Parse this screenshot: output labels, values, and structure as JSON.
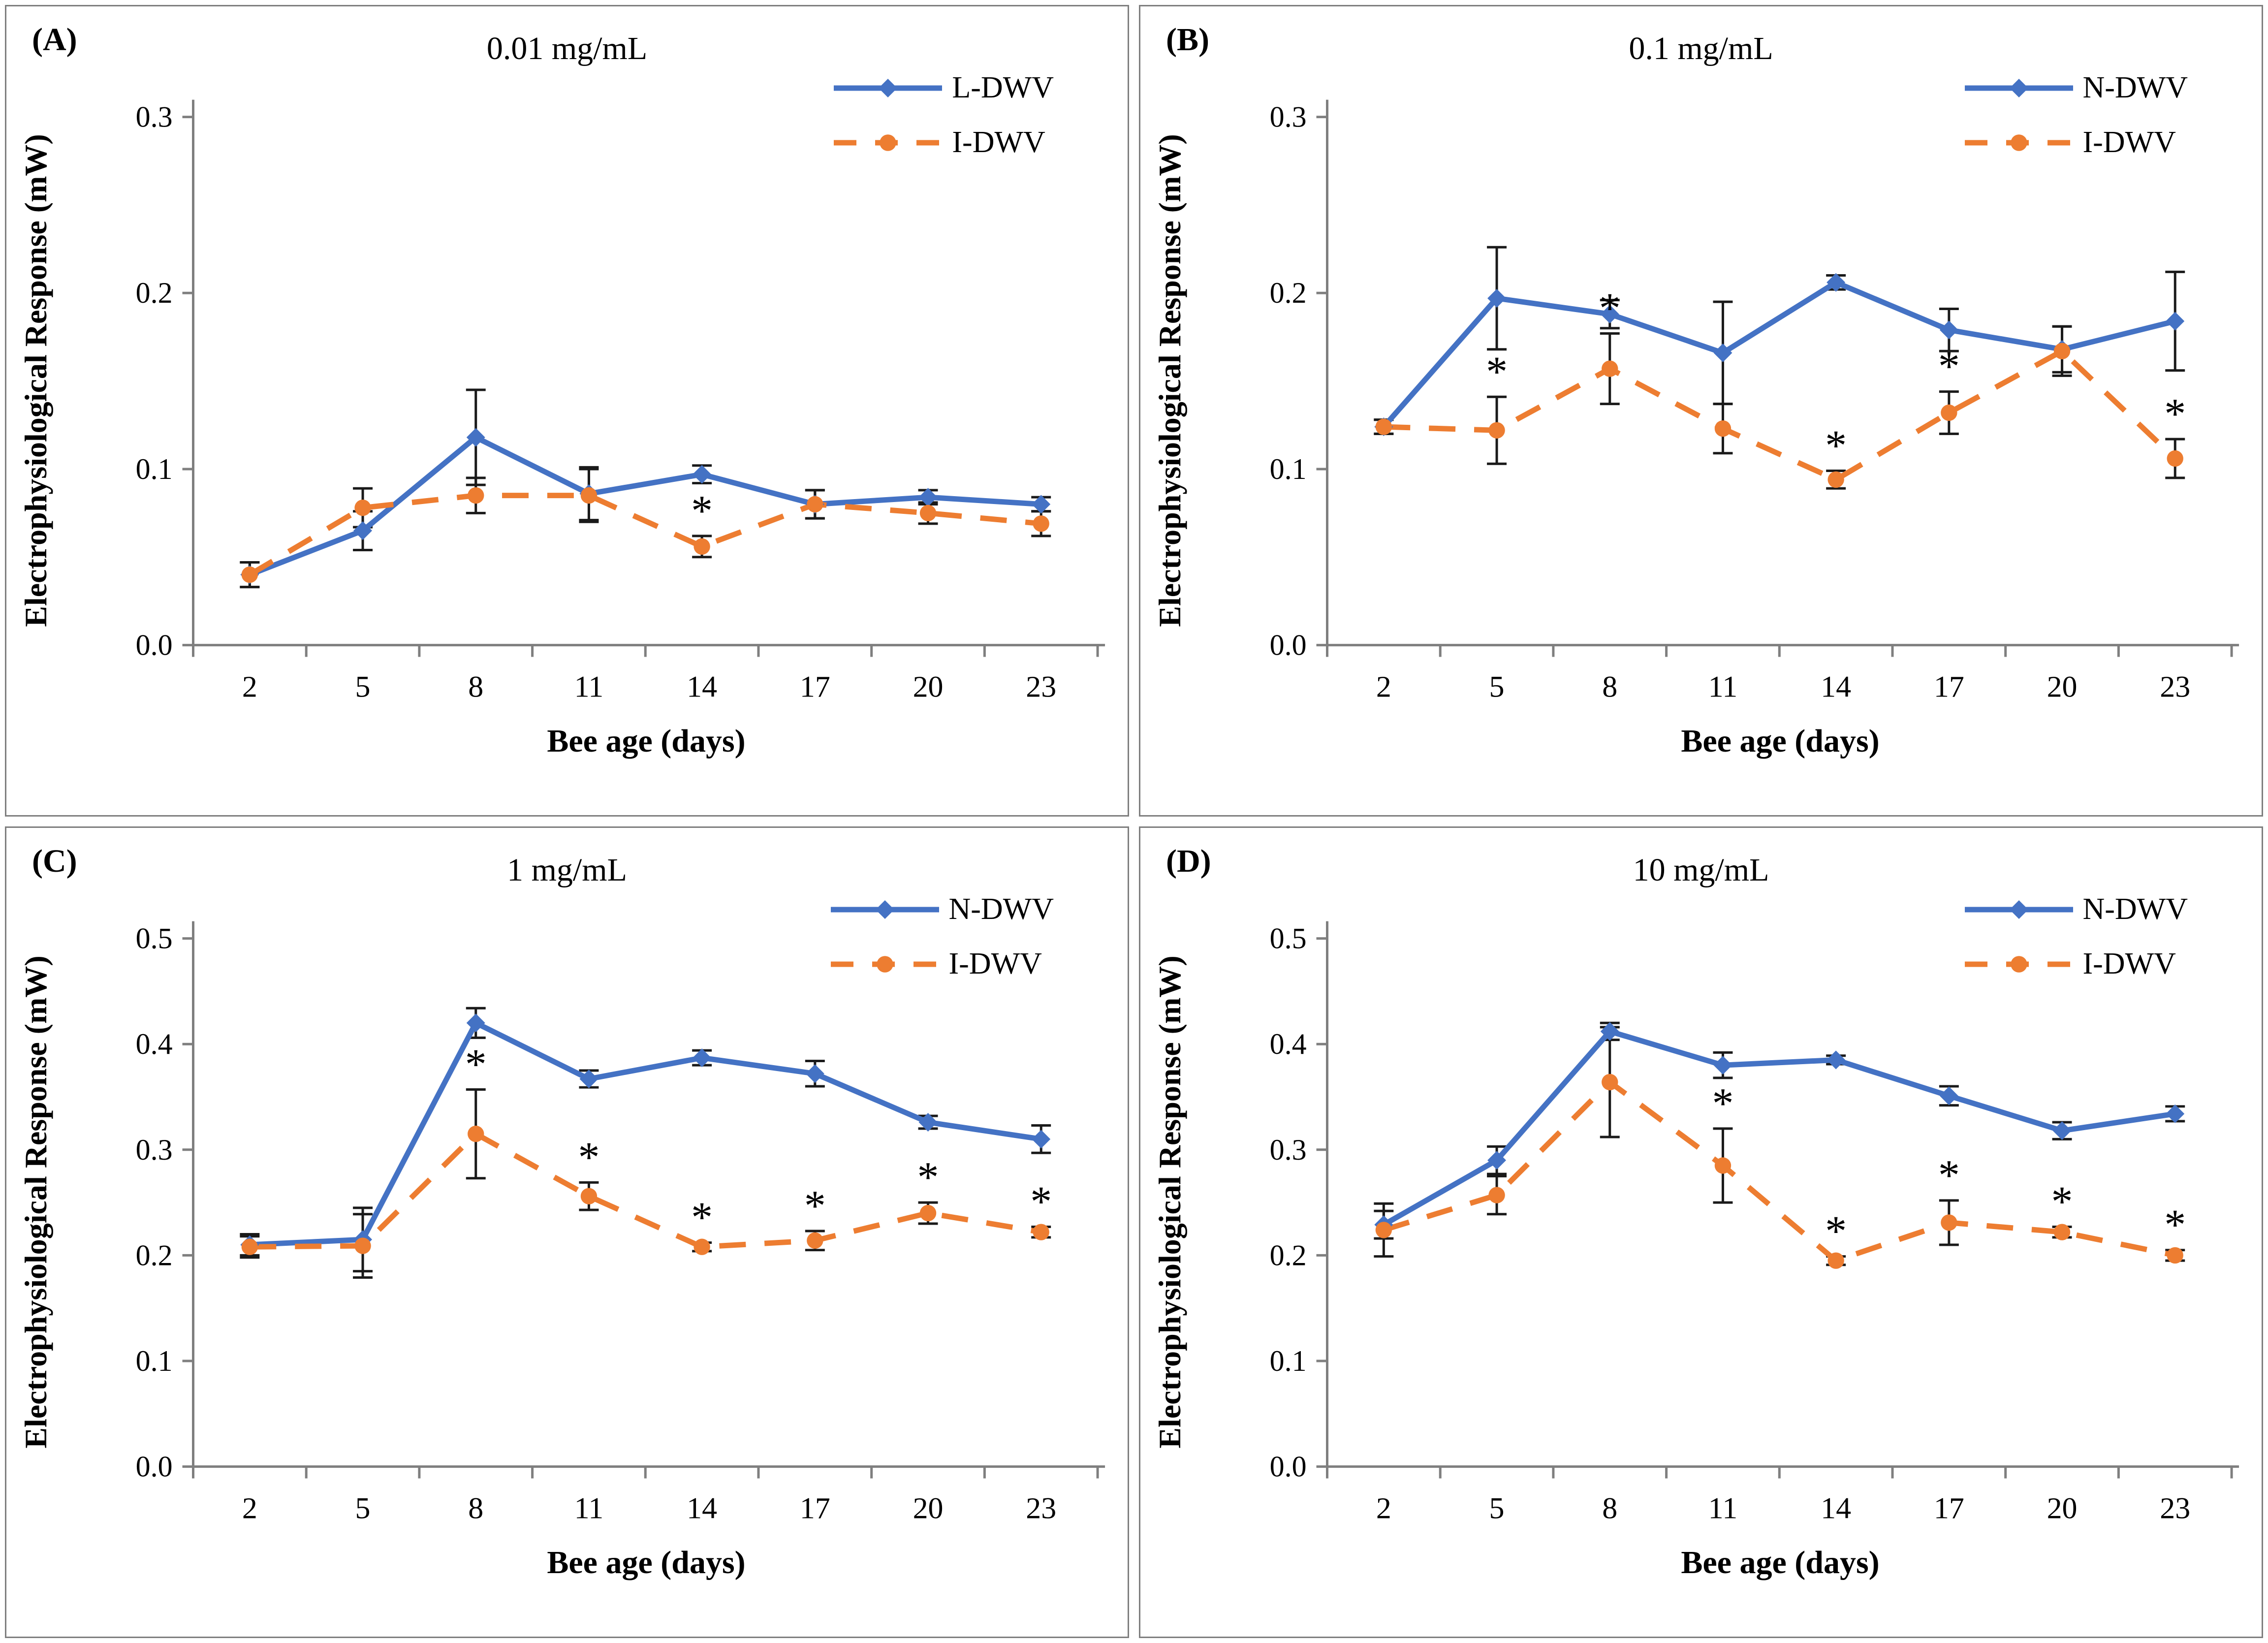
{
  "figure": {
    "background": "#ffffff",
    "panel_border_color": "#7f7f7f",
    "axis_color": "#7f7f7f",
    "error_bar_color": "#1a1a1a",
    "significance_marker": "*"
  },
  "chart_data": [
    {
      "type": "line",
      "panel_label": "(A)",
      "title": "0.01 mg/mL",
      "xlabel": "Bee age (days)",
      "ylabel": "Electrophysiological Response (mW)",
      "categories": [
        2,
        5,
        8,
        11,
        14,
        17,
        20,
        23
      ],
      "ylim": [
        0.0,
        0.3
      ],
      "yticks": [
        "0.0",
        "0.1",
        "0.2",
        "0.3"
      ],
      "legend_position": "top-right",
      "grid": "off",
      "series": [
        {
          "name": "L-DWV",
          "color": "#4472C4",
          "line_style": "solid",
          "marker": "diamond",
          "values": [
            0.04,
            0.065,
            0.118,
            0.086,
            0.097,
            0.08,
            0.084,
            0.08
          ],
          "errors": [
            0.007,
            0.011,
            0.027,
            0.015,
            0.005,
            0.008,
            0.004,
            0.004
          ],
          "significant_days": []
        },
        {
          "name": "I-DWV",
          "color": "#ED7D31",
          "line_style": "dashed",
          "marker": "circle",
          "values": [
            0.04,
            0.078,
            0.085,
            0.085,
            0.056,
            0.08,
            0.075,
            0.069
          ],
          "errors": [
            0.007,
            0.011,
            0.01,
            0.015,
            0.006,
            0.008,
            0.006,
            0.007
          ],
          "significant_days": [
            14
          ]
        }
      ]
    },
    {
      "type": "line",
      "panel_label": "(B)",
      "title": "0.1 mg/mL",
      "xlabel": "Bee age (days)",
      "ylabel": "Electrophysiological Response (mW)",
      "categories": [
        2,
        5,
        8,
        11,
        14,
        17,
        20,
        23
      ],
      "ylim": [
        0.0,
        0.3
      ],
      "yticks": [
        "0.0",
        "0.1",
        "0.2",
        "0.3"
      ],
      "legend_position": "top-right",
      "grid": "off",
      "series": [
        {
          "name": "N-DWV",
          "color": "#4472C4",
          "line_style": "solid",
          "marker": "diamond",
          "values": [
            0.124,
            0.197,
            0.188,
            0.166,
            0.206,
            0.179,
            0.168,
            0.184
          ],
          "errors": [
            0.004,
            0.029,
            0.008,
            0.029,
            0.004,
            0.012,
            0.013,
            0.028
          ],
          "significant_days": []
        },
        {
          "name": "I-DWV",
          "color": "#ED7D31",
          "line_style": "dashed",
          "marker": "circle",
          "values": [
            0.124,
            0.122,
            0.157,
            0.123,
            0.094,
            0.132,
            0.167,
            0.106
          ],
          "errors": [
            0.004,
            0.019,
            0.02,
            0.014,
            0.005,
            0.012,
            0.014,
            0.011
          ],
          "significant_days": [
            5,
            8,
            14,
            17,
            23
          ]
        }
      ]
    },
    {
      "type": "line",
      "panel_label": "(C)",
      "title": "1 mg/mL",
      "xlabel": "Bee age (days)",
      "ylabel": "Electrophysiological Response (mW)",
      "categories": [
        2,
        5,
        8,
        11,
        14,
        17,
        20,
        23
      ],
      "ylim": [
        0.0,
        0.5
      ],
      "yticks": [
        "0.0",
        "0.1",
        "0.2",
        "0.3",
        "0.4",
        "0.5"
      ],
      "legend_position": "top-right",
      "grid": "off",
      "series": [
        {
          "name": "N-DWV",
          "color": "#4472C4",
          "line_style": "solid",
          "marker": "diamond",
          "values": [
            0.21,
            0.215,
            0.42,
            0.367,
            0.387,
            0.372,
            0.326,
            0.31
          ],
          "errors": [
            0.01,
            0.03,
            0.014,
            0.008,
            0.007,
            0.012,
            0.006,
            0.013
          ],
          "significant_days": []
        },
        {
          "name": "I-DWV",
          "color": "#ED7D31",
          "line_style": "dashed",
          "marker": "circle",
          "values": [
            0.208,
            0.209,
            0.315,
            0.256,
            0.208,
            0.214,
            0.24,
            0.222
          ],
          "errors": [
            0.01,
            0.03,
            0.042,
            0.013,
            0.004,
            0.009,
            0.01,
            0.005
          ],
          "significant_days": [
            8,
            11,
            14,
            17,
            20,
            23
          ]
        }
      ]
    },
    {
      "type": "line",
      "panel_label": "(D)",
      "title": "10 mg/mL",
      "xlabel": "Bee age (days)",
      "ylabel": "Electrophysiological Response (mW)",
      "categories": [
        2,
        5,
        8,
        11,
        14,
        17,
        20,
        23
      ],
      "ylim": [
        0.0,
        0.5
      ],
      "yticks": [
        "0.0",
        "0.1",
        "0.2",
        "0.3",
        "0.4",
        "0.5"
      ],
      "legend_position": "top-right",
      "grid": "off",
      "series": [
        {
          "name": "N-DWV",
          "color": "#4472C4",
          "line_style": "solid",
          "marker": "diamond",
          "values": [
            0.229,
            0.29,
            0.412,
            0.38,
            0.385,
            0.351,
            0.318,
            0.334
          ],
          "errors": [
            0.013,
            0.013,
            0.008,
            0.012,
            0.004,
            0.009,
            0.008,
            0.007
          ],
          "significant_days": []
        },
        {
          "name": "I-DWV",
          "color": "#ED7D31",
          "line_style": "dashed",
          "marker": "circle",
          "values": [
            0.224,
            0.257,
            0.364,
            0.285,
            0.195,
            0.231,
            0.222,
            0.2
          ],
          "errors": [
            0.025,
            0.018,
            0.052,
            0.035,
            0.004,
            0.021,
            0.005,
            0.005
          ],
          "significant_days": [
            11,
            14,
            17,
            20,
            23
          ]
        }
      ]
    }
  ]
}
